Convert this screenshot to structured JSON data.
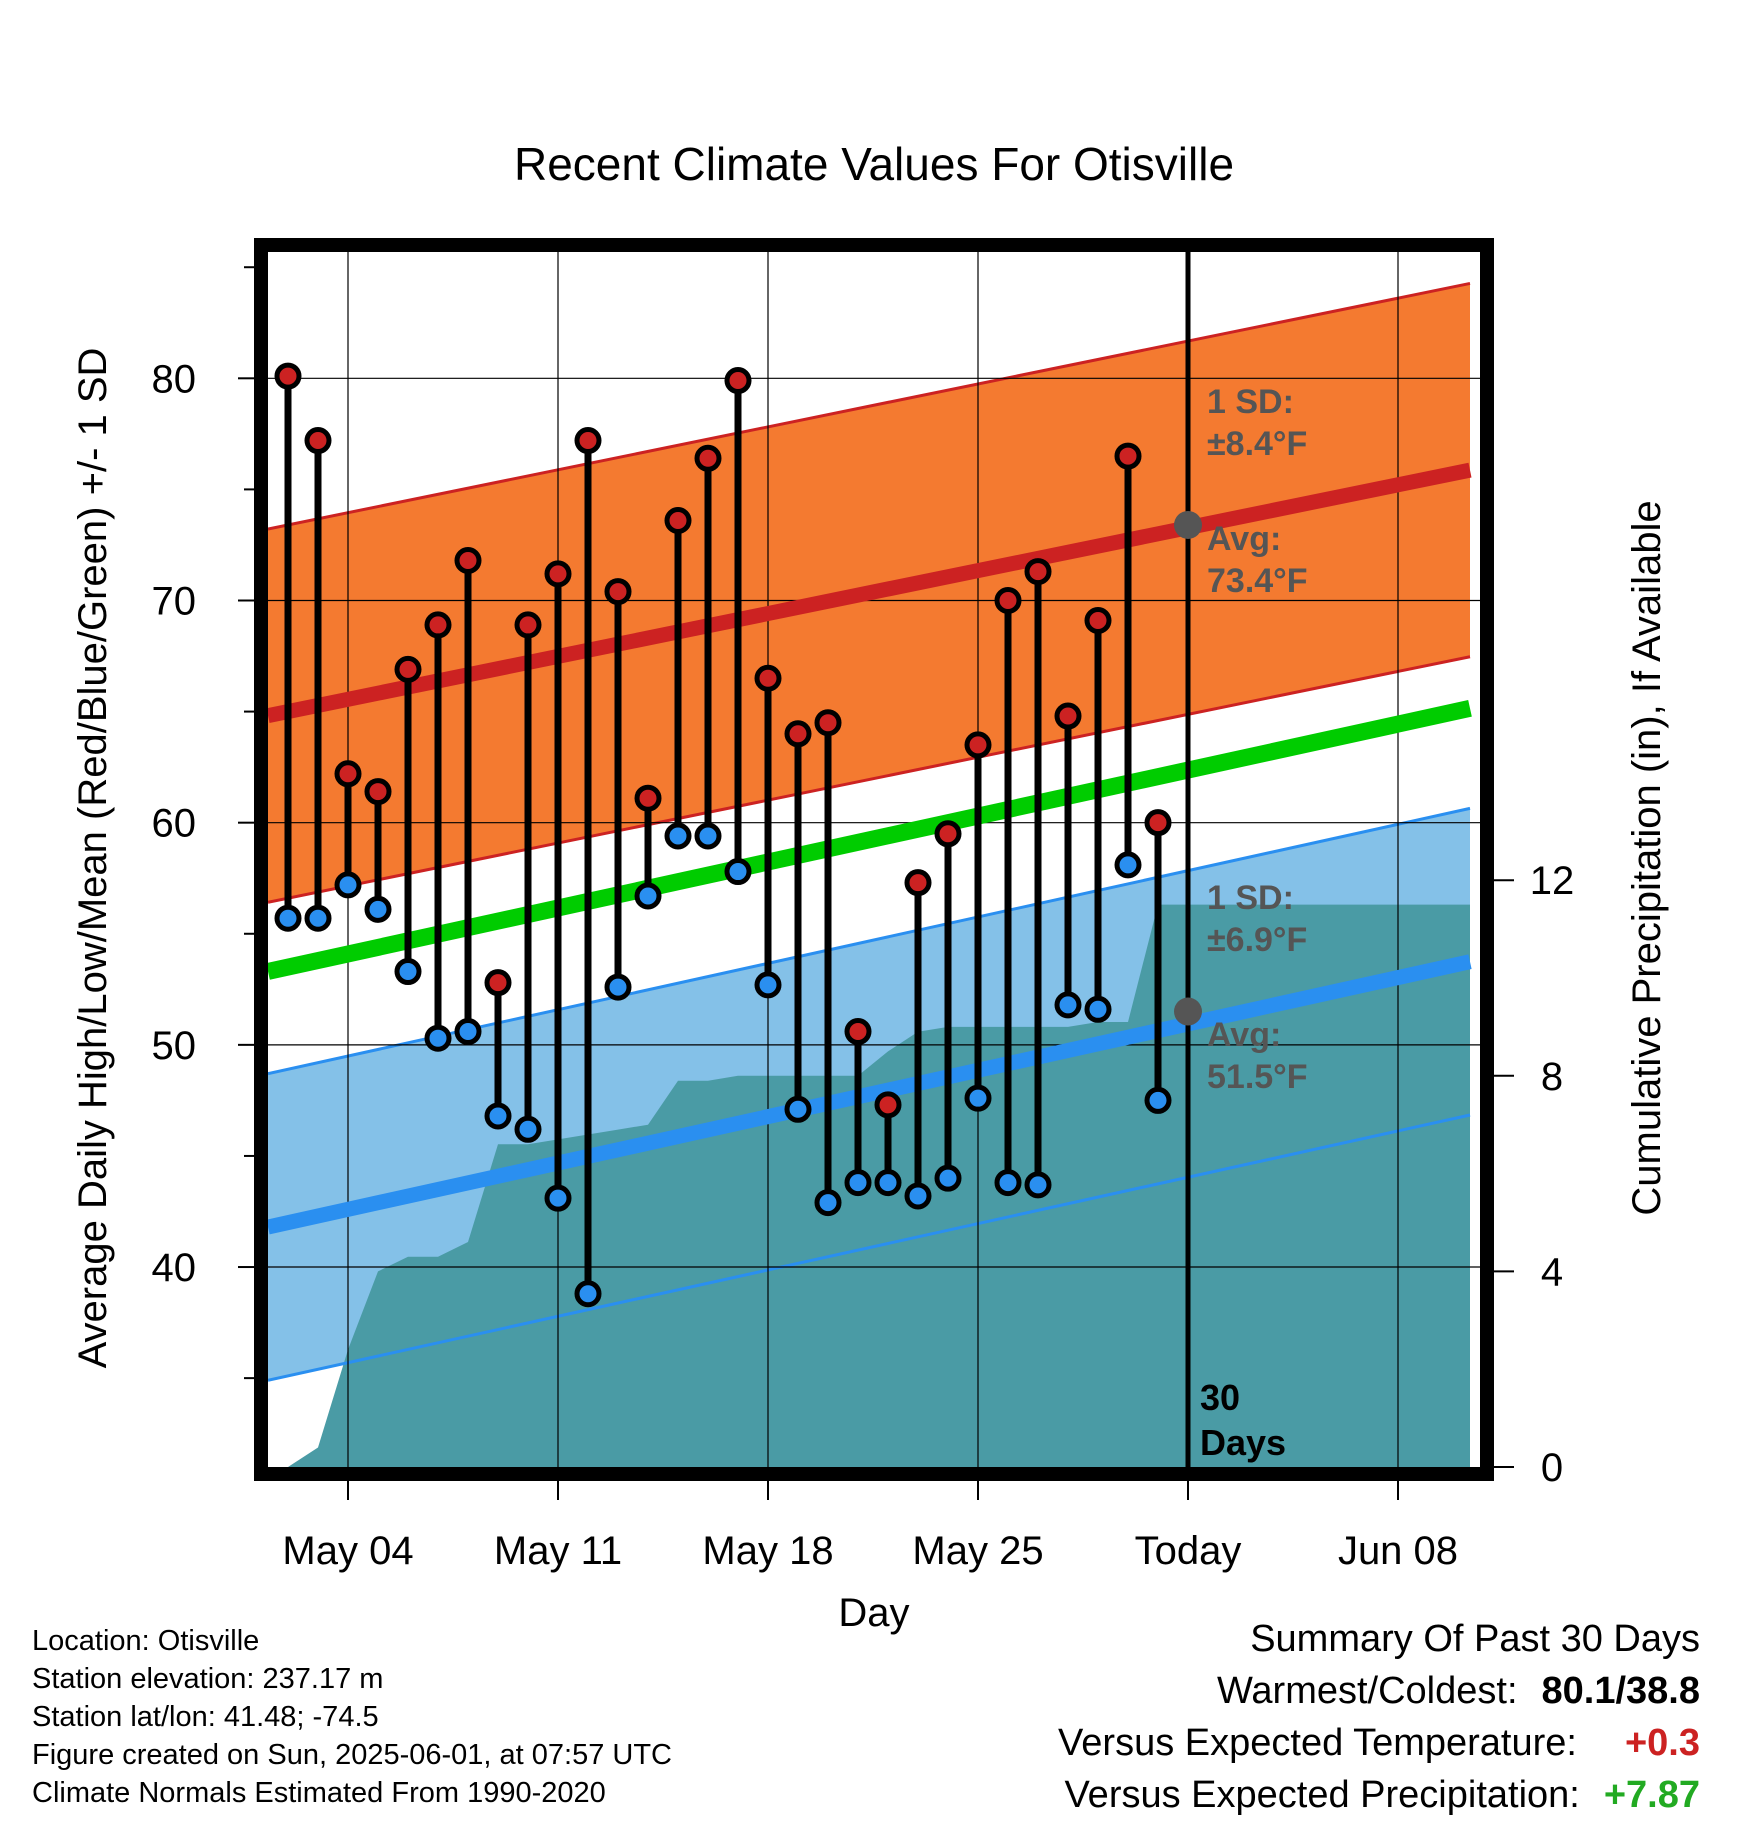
{
  "chart_data": {
    "type": "line",
    "title": "Recent Climate Values For Otisville",
    "xlabel": "Day",
    "ylabel": "Average Daily High/Low/Mean (Red/Blue/Green) +/- 1 SD",
    "y2label": "Cumulative Precipitation (in), If Available",
    "ylim": [
      31,
      86
    ],
    "y2lim": [
      0,
      20
    ],
    "x_tick_labels": [
      "May 04",
      "May 11",
      "May 18",
      "May 25",
      "Today",
      "Jun 08"
    ],
    "y_ticks": [
      40,
      50,
      60,
      70,
      80
    ],
    "y2_ticks": [
      0,
      4,
      8,
      12
    ],
    "grid": true,
    "dates": [
      "May 02",
      "May 03",
      "May 04",
      "May 05",
      "May 06",
      "May 07",
      "May 08",
      "May 09",
      "May 10",
      "May 11",
      "May 12",
      "May 13",
      "May 14",
      "May 15",
      "May 16",
      "May 17",
      "May 18",
      "May 19",
      "May 20",
      "May 21",
      "May 22",
      "May 23",
      "May 24",
      "May 25",
      "May 26",
      "May 27",
      "May 28",
      "May 29",
      "May 30",
      "May 31"
    ],
    "series": [
      {
        "name": "Daily High",
        "color": "#cc2222",
        "values": [
          80.1,
          77.2,
          62.2,
          61.4,
          66.9,
          68.9,
          71.8,
          52.8,
          68.9,
          71.2,
          77.2,
          70.4,
          61.1,
          73.6,
          76.4,
          79.9,
          66.5,
          64.0,
          64.5,
          50.6,
          47.3,
          57.3,
          59.5,
          63.5,
          70.0,
          71.3,
          64.8,
          69.1,
          76.5,
          60.0
        ]
      },
      {
        "name": "Daily Low",
        "color": "#2a8ff0",
        "values": [
          55.7,
          55.7,
          57.2,
          56.1,
          53.3,
          50.3,
          50.6,
          46.8,
          46.2,
          43.1,
          38.8,
          52.6,
          56.7,
          59.4,
          59.4,
          57.8,
          52.7,
          47.1,
          42.9,
          43.8,
          43.8,
          43.2,
          44.0,
          47.6,
          43.8,
          43.7,
          51.8,
          51.6,
          58.1,
          47.5
        ]
      },
      {
        "name": "Cumulative Precipitation",
        "color": "#4a9ba5",
        "values": [
          0,
          0.4,
          2.4,
          4.0,
          4.3,
          4.3,
          4.6,
          6.6,
          6.6,
          6.7,
          6.8,
          6.9,
          7.0,
          7.9,
          7.9,
          8.0,
          8.0,
          8.0,
          8.0,
          8.0,
          8.5,
          8.9,
          9.0,
          9.0,
          9.0,
          9.0,
          9.0,
          9.1,
          9.1,
          11.5
        ]
      }
    ],
    "normals": {
      "high_avg_range": [
        65.0,
        76.2
      ],
      "high_sd": 8.4,
      "low_avg_range": [
        42.0,
        54.1
      ],
      "low_sd": 6.9,
      "mean_range": [
        53.5,
        65.5
      ],
      "today_high_avg": 73.4,
      "today_low_avg": 51.5
    },
    "colors": {
      "high_band": "#f47a30",
      "high_line": "#cc2222",
      "low_band": "#84c1e8",
      "low_line": "#2a8ff0",
      "mean_line": "#00cc00",
      "precip": "#4a9ba5",
      "annotation": "#555555"
    }
  },
  "annotations": {
    "high_sd_label": "1 SD:",
    "high_sd_value": "±8.4°F",
    "high_avg_label": "Avg:",
    "high_avg_value": "73.4°F",
    "low_sd_label": "1 SD:",
    "low_sd_value": "±6.9°F",
    "low_avg_label": "Avg:",
    "low_avg_value": "51.5°F",
    "days_number": "30",
    "days_word": "Days"
  },
  "info": {
    "location": "Location: Otisville",
    "elevation": "Station elevation: 237.17 m",
    "latlon": "Station lat/lon: 41.48; -74.5",
    "created": "Figure created on Sun, 2025-06-01, at 07:57 UTC",
    "normals": "Climate Normals Estimated From 1990-2020"
  },
  "summary": {
    "heading": "Summary Of Past 30 Days",
    "warmest_label": "Warmest/Coldest:",
    "warmest_value": "80.1/38.8",
    "temp_label": "Versus Expected Temperature:",
    "temp_value": "+0.3",
    "temp_color": "#cc2222",
    "precip_label": "Versus Expected Precipitation:",
    "precip_value": "+7.87",
    "precip_color": "#22aa22"
  }
}
